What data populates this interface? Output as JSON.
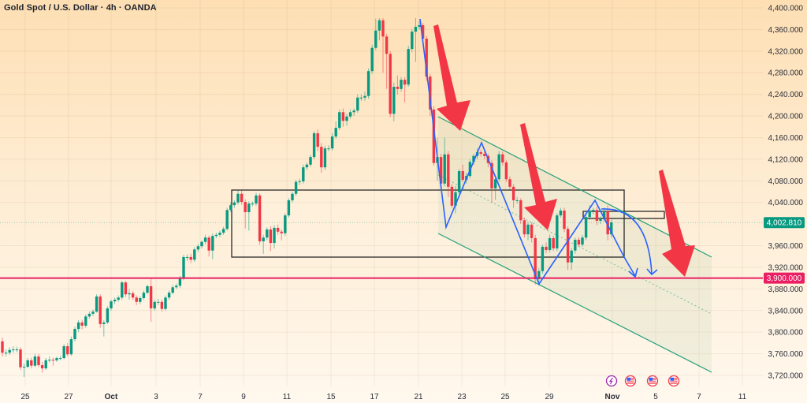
{
  "header": {
    "title": "Gold Spot / U.S. Dollar · 4h · OANDA"
  },
  "colors": {
    "up": "#089981",
    "down": "#f23645",
    "level_line": "#e91e63",
    "channel": "#26a17b",
    "pattern": "#2962ff",
    "arrow": "#f23645",
    "box": "#2a2a2a"
  },
  "price_labels": {
    "last_price": "4,002.810",
    "level": "3,900.000"
  },
  "event_icons": [
    "lightning-icon",
    "us-flag-icon",
    "us-flag-icon",
    "us-flag-icon"
  ],
  "chart_data": {
    "type": "candlestick",
    "title": "Gold Spot / U.S. Dollar · 4h · OANDA",
    "ylim": [
      3720,
      4400
    ],
    "y_tick_labels": [
      "4,400.000",
      "4,360.000",
      "4,320.000",
      "4,280.000",
      "4,240.000",
      "4,200.000",
      "4,160.000",
      "4,120.000",
      "4,080.000",
      "4,040.000",
      "3,960.000",
      "3,920.000",
      "3,880.000",
      "3,840.000",
      "3,800.000",
      "3,760.000",
      "3,720.000"
    ],
    "x_tick_labels": [
      "25",
      "27",
      "Oct",
      "3",
      "7",
      "9",
      "11",
      "15",
      "17",
      "21",
      "23",
      "25",
      "29",
      "Nov",
      "5",
      "7",
      "11"
    ],
    "grid": true,
    "last_price": 4002.81,
    "horizontal_level": 3900,
    "candles_ohlc": [
      [
        3783,
        3790,
        3755,
        3762
      ],
      [
        3762,
        3768,
        3755,
        3762
      ],
      [
        3762,
        3772,
        3758,
        3767
      ],
      [
        3767,
        3774,
        3762,
        3768
      ],
      [
        3768,
        3773,
        3763,
        3768
      ],
      [
        3768,
        3772,
        3730,
        3735
      ],
      [
        3735,
        3742,
        3717,
        3736
      ],
      [
        3736,
        3752,
        3733,
        3748
      ],
      [
        3748,
        3753,
        3733,
        3738
      ],
      [
        3738,
        3760,
        3735,
        3755
      ],
      [
        3755,
        3760,
        3735,
        3739
      ],
      [
        3739,
        3745,
        3725,
        3733
      ],
      [
        3733,
        3752,
        3730,
        3748
      ],
      [
        3748,
        3755,
        3744,
        3749
      ],
      [
        3749,
        3753,
        3738,
        3748
      ],
      [
        3748,
        3755,
        3745,
        3752
      ],
      [
        3752,
        3756,
        3748,
        3752
      ],
      [
        3752,
        3778,
        3750,
        3774
      ],
      [
        3774,
        3780,
        3755,
        3759
      ],
      [
        3759,
        3792,
        3756,
        3787
      ],
      [
        3787,
        3810,
        3783,
        3806
      ],
      [
        3806,
        3822,
        3800,
        3818
      ],
      [
        3818,
        3823,
        3805,
        3812
      ],
      [
        3812,
        3833,
        3808,
        3829
      ],
      [
        3829,
        3838,
        3825,
        3834
      ],
      [
        3834,
        3842,
        3830,
        3838
      ],
      [
        3838,
        3870,
        3836,
        3866
      ],
      [
        3866,
        3870,
        3808,
        3815
      ],
      [
        3815,
        3822,
        3792,
        3818
      ],
      [
        3818,
        3848,
        3815,
        3844
      ],
      [
        3844,
        3860,
        3840,
        3857
      ],
      [
        3857,
        3864,
        3852,
        3860
      ],
      [
        3860,
        3868,
        3856,
        3864
      ],
      [
        3864,
        3895,
        3860,
        3892
      ],
      [
        3892,
        3895,
        3865,
        3870
      ],
      [
        3870,
        3880,
        3860,
        3872
      ],
      [
        3872,
        3876,
        3860,
        3864
      ],
      [
        3864,
        3868,
        3850,
        3856
      ],
      [
        3856,
        3866,
        3852,
        3863
      ],
      [
        3863,
        3877,
        3860,
        3873
      ],
      [
        3873,
        3888,
        3870,
        3885
      ],
      [
        3885,
        3900,
        3819,
        3844
      ],
      [
        3844,
        3860,
        3840,
        3856
      ],
      [
        3856,
        3862,
        3850,
        3856
      ],
      [
        3856,
        3860,
        3838,
        3843
      ],
      [
        3843,
        3868,
        3840,
        3864
      ],
      [
        3864,
        3877,
        3860,
        3873
      ],
      [
        3873,
        3887,
        3870,
        3883
      ],
      [
        3883,
        3890,
        3880,
        3886
      ],
      [
        3886,
        3904,
        3882,
        3900
      ],
      [
        3900,
        3943,
        3896,
        3939
      ],
      [
        3939,
        3944,
        3932,
        3939
      ],
      [
        3939,
        3945,
        3928,
        3934
      ],
      [
        3934,
        3957,
        3930,
        3953
      ],
      [
        3953,
        3963,
        3948,
        3959
      ],
      [
        3959,
        3970,
        3955,
        3967
      ],
      [
        3967,
        3980,
        3963,
        3975
      ],
      [
        3975,
        3979,
        3940,
        3951
      ],
      [
        3951,
        3982,
        3935,
        3978
      ],
      [
        3978,
        3984,
        3974,
        3980
      ],
      [
        3980,
        3988,
        3976,
        3984
      ],
      [
        3984,
        3995,
        3980,
        3991
      ],
      [
        3991,
        4030,
        3988,
        4026
      ],
      [
        4026,
        4040,
        4022,
        4035
      ],
      [
        4035,
        4044,
        4030,
        4040
      ],
      [
        4040,
        4062,
        4036,
        4056
      ],
      [
        4056,
        4062,
        4036,
        4041
      ],
      [
        4041,
        4046,
        3992,
        4022
      ],
      [
        4022,
        4042,
        3988,
        4038
      ],
      [
        4038,
        4042,
        4033,
        4038
      ],
      [
        4038,
        4058,
        4034,
        4053
      ],
      [
        4053,
        4057,
        3962,
        3968
      ],
      [
        3968,
        3980,
        3945,
        3975
      ],
      [
        3975,
        3994,
        3970,
        3990
      ],
      [
        3990,
        3996,
        3950,
        3965
      ],
      [
        3965,
        3998,
        3955,
        3993
      ],
      [
        3993,
        3999,
        3980,
        3986
      ],
      [
        3986,
        3990,
        3970,
        3983
      ],
      [
        3983,
        4020,
        3978,
        4016
      ],
      [
        4016,
        4048,
        4012,
        4044
      ],
      [
        4044,
        4060,
        4040,
        4056
      ],
      [
        4056,
        4082,
        4052,
        4078
      ],
      [
        4078,
        4084,
        4072,
        4079
      ],
      [
        4079,
        4110,
        4075,
        4105
      ],
      [
        4105,
        4114,
        4100,
        4110
      ],
      [
        4110,
        4128,
        4106,
        4124
      ],
      [
        4124,
        4172,
        4120,
        4168
      ],
      [
        4168,
        4175,
        4135,
        4143
      ],
      [
        4143,
        4150,
        4095,
        4105
      ],
      [
        4105,
        4145,
        4100,
        4140
      ],
      [
        4140,
        4146,
        4135,
        4140
      ],
      [
        4140,
        4168,
        4136,
        4162
      ],
      [
        4162,
        4190,
        4158,
        4178
      ],
      [
        4178,
        4212,
        4174,
        4207
      ],
      [
        4207,
        4214,
        4180,
        4191
      ],
      [
        4191,
        4204,
        4182,
        4199
      ],
      [
        4199,
        4212,
        4195,
        4207
      ],
      [
        4207,
        4214,
        4200,
        4210
      ],
      [
        4210,
        4240,
        4206,
        4234
      ],
      [
        4234,
        4240,
        4228,
        4234
      ],
      [
        4234,
        4245,
        4228,
        4237
      ],
      [
        4237,
        4288,
        4232,
        4283
      ],
      [
        4283,
        4332,
        4278,
        4326
      ],
      [
        4326,
        4380,
        4322,
        4358
      ],
      [
        4358,
        4381,
        4340,
        4377
      ],
      [
        4377,
        4381,
        4280,
        4347
      ],
      [
        4347,
        4352,
        4250,
        4315
      ],
      [
        4315,
        4320,
        4198,
        4204
      ],
      [
        4204,
        4262,
        4190,
        4254
      ],
      [
        4254,
        4275,
        4240,
        4250
      ],
      [
        4250,
        4272,
        4245,
        4267
      ],
      [
        4267,
        4272,
        4225,
        4258
      ],
      [
        4258,
        4330,
        4254,
        4324
      ],
      [
        4324,
        4360,
        4318,
        4356
      ],
      [
        4356,
        4381,
        4300,
        4365
      ],
      [
        4365,
        4375,
        4360,
        4368
      ],
      [
        4368,
        4372,
        4335,
        4343
      ],
      [
        4343,
        4348,
        4265,
        4273
      ],
      [
        4273,
        4278,
        4200,
        4212
      ],
      [
        4212,
        4218,
        4108,
        4113
      ],
      [
        4113,
        4160,
        4080,
        4124
      ],
      [
        4124,
        4130,
        4068,
        4075
      ],
      [
        4075,
        4160,
        4070,
        4129
      ],
      [
        4129,
        4135,
        4050,
        4069
      ],
      [
        4069,
        4074,
        4030,
        4034
      ],
      [
        4034,
        4070,
        4020,
        4059
      ],
      [
        4059,
        4102,
        4055,
        4098
      ],
      [
        4098,
        4110,
        4078,
        4082
      ],
      [
        4082,
        4095,
        4075,
        4089
      ],
      [
        4089,
        4120,
        4085,
        4115
      ],
      [
        4115,
        4130,
        4110,
        4126
      ],
      [
        4126,
        4140,
        4120,
        4133
      ],
      [
        4133,
        4138,
        4125,
        4130
      ],
      [
        4130,
        4135,
        4120,
        4126
      ],
      [
        4126,
        4130,
        4105,
        4113
      ],
      [
        4113,
        4118,
        4040,
        4066
      ],
      [
        4066,
        4090,
        4045,
        4083
      ],
      [
        4083,
        4135,
        4078,
        4129
      ],
      [
        4129,
        4134,
        4108,
        4114
      ],
      [
        4114,
        4118,
        4078,
        4083
      ],
      [
        4083,
        4088,
        4064,
        4069
      ],
      [
        4069,
        4074,
        4030,
        4044
      ],
      [
        4044,
        4050,
        4038,
        4044
      ],
      [
        4044,
        4048,
        4000,
        4007
      ],
      [
        4007,
        4012,
        3975,
        3981
      ],
      [
        3981,
        4004,
        3970,
        3999
      ],
      [
        3999,
        4003,
        3966,
        3974
      ],
      [
        3974,
        3980,
        3888,
        3898
      ],
      [
        3898,
        3918,
        3886,
        3913
      ],
      [
        3913,
        3962,
        3908,
        3958
      ],
      [
        3958,
        3966,
        3946,
        3952
      ],
      [
        3952,
        3980,
        3948,
        3974
      ],
      [
        3974,
        3978,
        3950,
        3955
      ],
      [
        3955,
        4020,
        3950,
        4016
      ],
      [
        4016,
        4030,
        4012,
        4025
      ],
      [
        4025,
        4030,
        3985,
        3991
      ],
      [
        3991,
        3996,
        3915,
        3929
      ],
      [
        3929,
        3956,
        3915,
        3951
      ],
      [
        3951,
        3975,
        3945,
        3971
      ],
      [
        3971,
        3976,
        3958,
        3962
      ],
      [
        3962,
        3980,
        3958,
        3975
      ],
      [
        3975,
        4018,
        3970,
        4013
      ],
      [
        4013,
        4035,
        4008,
        4024
      ],
      [
        4024,
        4030,
        4018,
        4026
      ],
      [
        4026,
        4032,
        3998,
        4006
      ],
      [
        4006,
        4014,
        4000,
        4009
      ],
      [
        4009,
        4030,
        4005,
        4024
      ],
      [
        4024,
        4035,
        3970,
        3981
      ],
      [
        3981,
        4008,
        3975,
        4003
      ]
    ]
  }
}
